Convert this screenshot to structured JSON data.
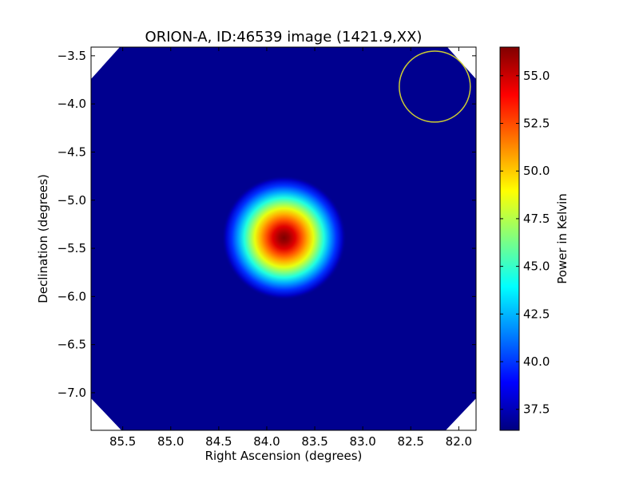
{
  "chart_data": {
    "type": "heatmap",
    "title": "ORION-A, ID:46539 image (1421.9,XX)",
    "xlabel": "Right Ascension (degrees)",
    "ylabel": "Declination (degrees)",
    "xlim": [
      85.83,
      81.82
    ],
    "ylim": [
      -7.39,
      -3.41
    ],
    "xticks": [
      85.5,
      85.0,
      84.5,
      84.0,
      83.5,
      83.0,
      82.5,
      82.0
    ],
    "xtick_labels": [
      "85.5",
      "85.0",
      "84.5",
      "84.0",
      "83.5",
      "83.0",
      "82.5",
      "82.0"
    ],
    "yticks": [
      -3.5,
      -4.0,
      -4.5,
      -5.0,
      -5.5,
      -6.0,
      -6.5,
      -7.0
    ],
    "ytick_labels": [
      "−3.5",
      "−4.0",
      "−4.5",
      "−5.0",
      "−5.5",
      "−6.0",
      "−6.5",
      "−7.0"
    ],
    "colorbar": {
      "label": "Power in Kelvin",
      "range": [
        36.4,
        56.5
      ],
      "ticks": [
        37.5,
        40.0,
        42.5,
        45.0,
        47.5,
        50.0,
        52.5,
        55.0
      ],
      "tick_labels": [
        "37.5",
        "40.0",
        "42.5",
        "45.0",
        "47.5",
        "50.0",
        "52.5",
        "55.0"
      ],
      "colormap": "jet"
    },
    "source_peak": {
      "ra": 83.82,
      "dec": -5.39,
      "value": 56.5
    },
    "background_value": 36.6,
    "beam_circle": {
      "ra": 82.25,
      "dec": -3.82,
      "radius_deg": 0.37,
      "color": "#cccc33"
    },
    "blank_corners": true
  }
}
